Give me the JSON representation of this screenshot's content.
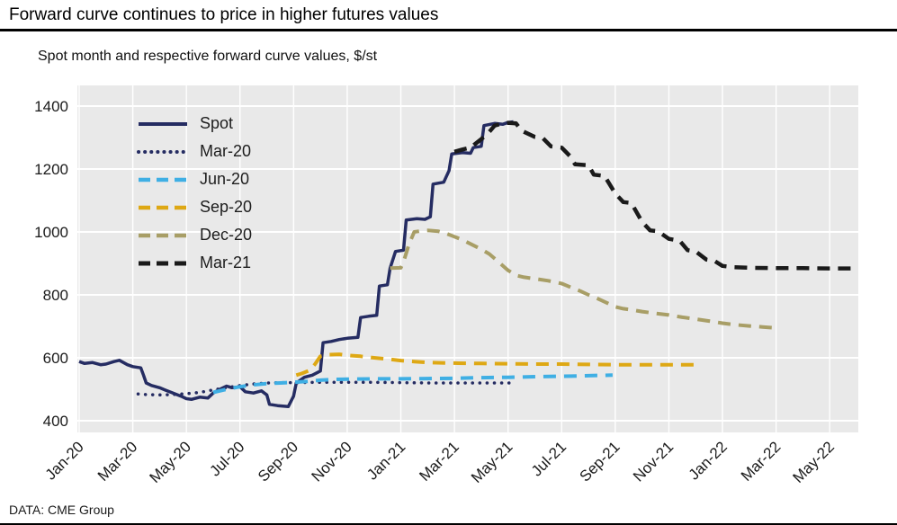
{
  "header": {
    "title": "Forward curve continues to price in higher futures values"
  },
  "footer": {
    "source": "DATA: CME Group"
  },
  "chart_data": {
    "type": "line",
    "title": "Spot month and respective forward curve values, $/st",
    "xlabel": "",
    "ylabel": "$/st",
    "x_axis": {
      "tick_labels": [
        "Jan-20",
        "Mar-20",
        "May-20",
        "Jul-20",
        "Sep-20",
        "Nov-20",
        "Jan-21",
        "Mar-21",
        "May-21",
        "Jul-21",
        "Sep-21",
        "Nov-21",
        "Jan-22",
        "Mar-22",
        "May-22"
      ],
      "months_span": 29,
      "unit": "months since Jan-20 (0 = Jan-20)"
    },
    "y_axis": {
      "min": 400,
      "max": 1400,
      "ticks": [
        400,
        600,
        800,
        1000,
        1200,
        1400
      ]
    },
    "ylim": [
      400,
      1400
    ],
    "grid": true,
    "legend_position": "upper-left",
    "colors": {
      "plot_background": "#e9e9e9",
      "gridline": "#ffffff"
    },
    "series": [
      {
        "name": "Spot",
        "color": "#252c62",
        "line_style": "solid",
        "width": 3.5,
        "points": [
          [
            0,
            588
          ],
          [
            0.2,
            582
          ],
          [
            0.5,
            585
          ],
          [
            0.8,
            578
          ],
          [
            1,
            580
          ],
          [
            1.3,
            588
          ],
          [
            1.5,
            592
          ],
          [
            1.8,
            578
          ],
          [
            2,
            572
          ],
          [
            2.3,
            568
          ],
          [
            2.4,
            545
          ],
          [
            2.5,
            520
          ],
          [
            2.7,
            512
          ],
          [
            3,
            505
          ],
          [
            3.2,
            498
          ],
          [
            3.5,
            488
          ],
          [
            3.8,
            478
          ],
          [
            4,
            470
          ],
          [
            4.2,
            468
          ],
          [
            4.5,
            475
          ],
          [
            4.8,
            472
          ],
          [
            5,
            488
          ],
          [
            5.2,
            498
          ],
          [
            5.5,
            510
          ],
          [
            5.7,
            505
          ],
          [
            6,
            508
          ],
          [
            6.2,
            492
          ],
          [
            6.5,
            488
          ],
          [
            6.8,
            495
          ],
          [
            7,
            482
          ],
          [
            7.1,
            452
          ],
          [
            7.4,
            448
          ],
          [
            7.8,
            445
          ],
          [
            8,
            478
          ],
          [
            8.1,
            520
          ],
          [
            8.4,
            538
          ],
          [
            8.7,
            545
          ],
          [
            9,
            558
          ],
          [
            9.1,
            648
          ],
          [
            9.4,
            652
          ],
          [
            9.7,
            658
          ],
          [
            10,
            662
          ],
          [
            10.4,
            665
          ],
          [
            10.5,
            728
          ],
          [
            10.8,
            732
          ],
          [
            11.1,
            735
          ],
          [
            11.2,
            828
          ],
          [
            11.5,
            832
          ],
          [
            11.6,
            885
          ],
          [
            11.8,
            938
          ],
          [
            12.1,
            942
          ],
          [
            12.2,
            1038
          ],
          [
            12.6,
            1042
          ],
          [
            12.9,
            1040
          ],
          [
            13.1,
            1048
          ],
          [
            13.2,
            1152
          ],
          [
            13.6,
            1158
          ],
          [
            13.8,
            1195
          ],
          [
            13.9,
            1248
          ],
          [
            14.3,
            1252
          ],
          [
            14.6,
            1250
          ],
          [
            14.7,
            1268
          ],
          [
            15,
            1272
          ],
          [
            15.1,
            1338
          ],
          [
            15.5,
            1345
          ],
          [
            15.8,
            1342
          ],
          [
            16,
            1348
          ],
          [
            16.2,
            1350
          ]
        ]
      },
      {
        "name": "Mar-20",
        "color": "#252c62",
        "line_style": "dotted",
        "width": 3.5,
        "points": [
          [
            2.2,
            485
          ],
          [
            2.5,
            483
          ],
          [
            3,
            482
          ],
          [
            3.5,
            483
          ],
          [
            4,
            486
          ],
          [
            4.5,
            490
          ],
          [
            5,
            498
          ],
          [
            5.5,
            505
          ],
          [
            6,
            512
          ],
          [
            6.5,
            517
          ],
          [
            7,
            520
          ],
          [
            7.5,
            521
          ],
          [
            8,
            521
          ],
          [
            9,
            522
          ],
          [
            10,
            522
          ],
          [
            11,
            522
          ],
          [
            12,
            521
          ],
          [
            13,
            520
          ],
          [
            14,
            520
          ],
          [
            15,
            520
          ],
          [
            16.3,
            520
          ]
        ]
      },
      {
        "name": "Jun-20",
        "color": "#3fafe4",
        "line_style": "dashed",
        "width": 4,
        "points": [
          [
            5,
            490
          ],
          [
            5.5,
            500
          ],
          [
            6,
            508
          ],
          [
            6.5,
            514
          ],
          [
            7,
            518
          ],
          [
            7.5,
            520
          ],
          [
            8,
            522
          ],
          [
            8.5,
            525
          ],
          [
            9,
            529
          ],
          [
            9.5,
            531
          ],
          [
            10,
            532
          ],
          [
            11,
            533
          ],
          [
            12,
            533
          ],
          [
            13,
            534
          ],
          [
            14,
            535
          ],
          [
            15,
            537
          ],
          [
            16,
            538
          ],
          [
            17,
            540
          ],
          [
            18,
            541
          ],
          [
            19,
            543
          ],
          [
            19.9,
            545
          ]
        ]
      },
      {
        "name": "Sep-20",
        "color": "#dea814",
        "line_style": "dashed",
        "width": 4,
        "points": [
          [
            8.1,
            545
          ],
          [
            8.3,
            550
          ],
          [
            8.6,
            560
          ],
          [
            8.8,
            580
          ],
          [
            9,
            605
          ],
          [
            9.3,
            610
          ],
          [
            9.7,
            611
          ],
          [
            10,
            608
          ],
          [
            10.5,
            605
          ],
          [
            11,
            600
          ],
          [
            11.5,
            596
          ],
          [
            12,
            591
          ],
          [
            12.5,
            588
          ],
          [
            13,
            585
          ],
          [
            14,
            583
          ],
          [
            15,
            582
          ],
          [
            16,
            581
          ],
          [
            17,
            580
          ],
          [
            18,
            580
          ],
          [
            19,
            579
          ],
          [
            20,
            578
          ],
          [
            21,
            578
          ],
          [
            22,
            578
          ],
          [
            23,
            578
          ]
        ]
      },
      {
        "name": "Dec-20",
        "color": "#a89e66",
        "line_style": "dashed",
        "width": 4,
        "points": [
          [
            11.6,
            885
          ],
          [
            12,
            886
          ],
          [
            12.1,
            905
          ],
          [
            12.3,
            960
          ],
          [
            12.5,
            1000
          ],
          [
            12.8,
            1004
          ],
          [
            13,
            1005
          ],
          [
            13.4,
            1002
          ],
          [
            13.7,
            995
          ],
          [
            14,
            985
          ],
          [
            14.3,
            975
          ],
          [
            14.6,
            962
          ],
          [
            15,
            945
          ],
          [
            15.3,
            930
          ],
          [
            15.6,
            908
          ],
          [
            16,
            878
          ],
          [
            16.3,
            862
          ],
          [
            16.6,
            856
          ],
          [
            17,
            851
          ],
          [
            17.5,
            845
          ],
          [
            18,
            836
          ],
          [
            18.4,
            822
          ],
          [
            18.7,
            812
          ],
          [
            19,
            800
          ],
          [
            19.3,
            790
          ],
          [
            19.6,
            778
          ],
          [
            20,
            762
          ],
          [
            20.3,
            756
          ],
          [
            20.7,
            751
          ],
          [
            21,
            747
          ],
          [
            21.5,
            741
          ],
          [
            22,
            736
          ],
          [
            22.5,
            729
          ],
          [
            23,
            723
          ],
          [
            23.5,
            717
          ],
          [
            24,
            710
          ],
          [
            24.5,
            705
          ],
          [
            25,
            701
          ],
          [
            25.5,
            698
          ],
          [
            26,
            695
          ]
        ]
      },
      {
        "name": "Mar-21",
        "color": "#1a1a1a",
        "line_style": "dashed",
        "width": 4.5,
        "points": [
          [
            14,
            1255
          ],
          [
            14.3,
            1262
          ],
          [
            14.6,
            1268
          ],
          [
            15,
            1295
          ],
          [
            15.3,
            1318
          ],
          [
            15.5,
            1338
          ],
          [
            15.8,
            1345
          ],
          [
            16,
            1347
          ],
          [
            16.3,
            1345
          ],
          [
            16.5,
            1322
          ],
          [
            17,
            1302
          ],
          [
            17.3,
            1298
          ],
          [
            17.6,
            1272
          ],
          [
            18,
            1268
          ],
          [
            18.3,
            1242
          ],
          [
            18.5,
            1215
          ],
          [
            19,
            1212
          ],
          [
            19.2,
            1182
          ],
          [
            19.6,
            1178
          ],
          [
            20,
            1122
          ],
          [
            20.3,
            1095
          ],
          [
            20.6,
            1092
          ],
          [
            21,
            1032
          ],
          [
            21.3,
            1005
          ],
          [
            21.6,
            1002
          ],
          [
            22,
            978
          ],
          [
            22.4,
            972
          ],
          [
            22.7,
            942
          ],
          [
            23,
            938
          ],
          [
            23.4,
            912
          ],
          [
            23.7,
            908
          ],
          [
            24,
            892
          ],
          [
            24.4,
            888
          ],
          [
            25,
            886
          ],
          [
            26,
            885
          ],
          [
            27,
            885
          ],
          [
            28,
            884
          ],
          [
            28.8,
            884
          ]
        ]
      }
    ]
  }
}
